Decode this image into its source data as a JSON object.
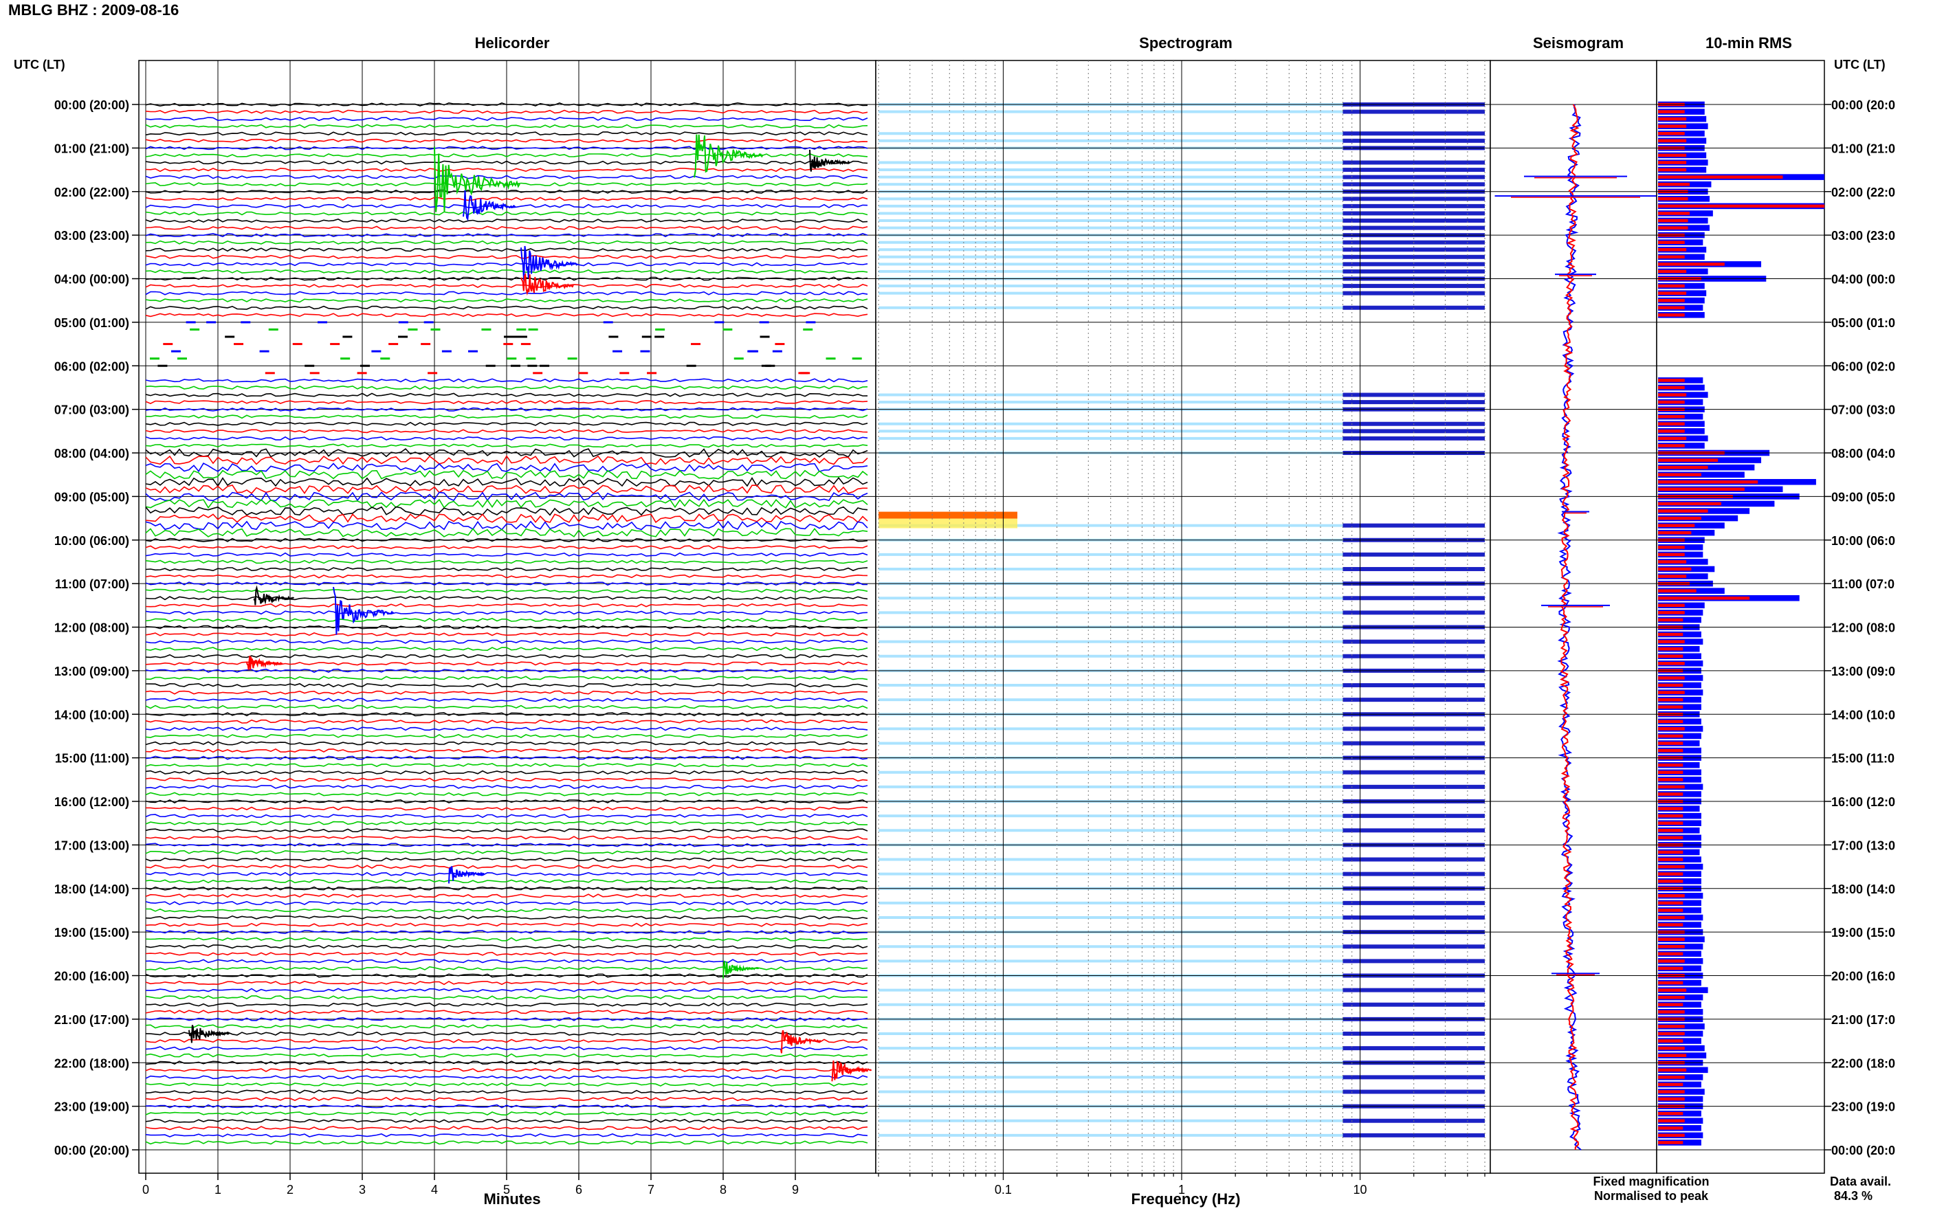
{
  "header": {
    "title": "MBLG BHZ : 2009-08-16"
  },
  "panels": {
    "helicorder": "Helicorder",
    "spectrogram": "Spectrogram",
    "seismogram": "Seismogram",
    "rms": "10-min RMS"
  },
  "axes": {
    "utc_lt_left": "UTC (LT)",
    "utc_lt_right": "UTC (LT)",
    "minutes_label": "Minutes",
    "frequency_label": "Frequency (Hz)"
  },
  "legend": {
    "fixed": "Fixed magnification",
    "normalised": "Normalised to peak",
    "fixed_color": "#0000ff",
    "normalised_color": "#ff0000"
  },
  "data_avail": {
    "label": "Data avail.",
    "value": "84.3 %"
  },
  "chart_data": {
    "type": "heatmap",
    "time_labels": [
      "00:00 (20:00)",
      "01:00 (21:00)",
      "02:00 (22:00)",
      "03:00 (23:00)",
      "04:00 (00:00)",
      "05:00 (01:00)",
      "06:00 (02:00)",
      "07:00 (03:00)",
      "08:00 (04:00)",
      "09:00 (05:00)",
      "10:00 (06:00)",
      "11:00 (07:00)",
      "12:00 (08:00)",
      "13:00 (09:00)",
      "14:00 (10:00)",
      "15:00 (11:00)",
      "16:00 (12:00)",
      "17:00 (13:00)",
      "18:00 (14:00)",
      "19:00 (15:00)",
      "20:00 (16:00)",
      "21:00 (17:00)",
      "22:00 (18:00)",
      "23:00 (19:00)",
      "00:00 (20:00)"
    ],
    "right_time_labels": [
      "00:00 (20:0",
      "01:00 (21:0",
      "02:00 (22:0",
      "03:00 (23:0",
      "04:00 (00:0",
      "05:00 (01:0",
      "06:00 (02:0",
      "07:00 (03:0",
      "08:00 (04:0",
      "09:00 (05:0",
      "10:00 (06:0",
      "11:00 (07:0",
      "12:00 (08:0",
      "13:00 (09:0",
      "14:00 (10:0",
      "15:00 (11:0",
      "16:00 (12:0",
      "17:00 (13:0",
      "18:00 (14:0",
      "19:00 (15:0",
      "20:00 (16:0",
      "21:00 (17:0",
      "22:00 (18:0",
      "23:00 (19:0",
      "00:00 (20:0"
    ],
    "minute_ticks": [
      "0",
      "1",
      "2",
      "3",
      "4",
      "5",
      "6",
      "7",
      "8",
      "9"
    ],
    "minutes_range": [
      0,
      10
    ],
    "frequency_ticks": [
      "0.1",
      "1",
      "10"
    ],
    "frequency_range_hz": [
      0.02,
      50
    ],
    "frequency_scale": "log",
    "trace_colors": [
      "#000000",
      "#ff0000",
      "#0000ff",
      "#00cc00"
    ],
    "events": [
      {
        "time": "01:10",
        "minute": 7.6,
        "amplitude": 1.0
      },
      {
        "time": "01:20",
        "minute": 9.2,
        "amplitude": 0.3
      },
      {
        "time": "01:50",
        "minute": 4.0,
        "amplitude": 1.4
      },
      {
        "time": "02:20",
        "minute": 4.4,
        "amplitude": 0.6
      },
      {
        "time": "03:40",
        "minute": 5.2,
        "amplitude": 0.7
      },
      {
        "time": "04:10",
        "minute": 5.2,
        "amplitude": 0.6
      },
      {
        "time": "11:20",
        "minute": 1.5,
        "amplitude": 0.3
      },
      {
        "time": "11:40",
        "minute": 2.6,
        "amplitude": 0.8
      },
      {
        "time": "12:50",
        "minute": 1.4,
        "amplitude": 0.2
      },
      {
        "time": "17:40",
        "minute": 4.2,
        "amplitude": 0.2
      },
      {
        "time": "19:50",
        "minute": 8.0,
        "amplitude": 0.2
      },
      {
        "time": "21:20",
        "minute": 0.6,
        "amplitude": 0.3
      },
      {
        "time": "21:30",
        "minute": 8.8,
        "amplitude": 0.3
      },
      {
        "time": "22:10",
        "minute": 9.5,
        "amplitude": 0.3
      }
    ],
    "rms_per_10min": {
      "unit": "relative",
      "fixed": [
        0.28,
        0.28,
        0.29,
        0.3,
        0.28,
        0.29,
        0.28,
        0.29,
        0.3,
        0.29,
        1.0,
        0.32,
        0.3,
        0.31,
        1.0,
        0.33,
        0.3,
        0.31,
        0.28,
        0.27,
        0.29,
        0.28,
        0.62,
        0.3,
        0.65,
        0.28,
        0.29,
        0.28,
        0.27,
        0.28,
        0.0,
        0.0,
        0.0,
        0.0,
        0.0,
        0.0,
        0.0,
        0.0,
        0.27,
        0.28,
        0.3,
        0.27,
        0.28,
        0.27,
        0.28,
        0.28,
        0.3,
        0.28,
        0.67,
        0.62,
        0.58,
        0.52,
        0.95,
        0.75,
        0.85,
        0.7,
        0.55,
        0.48,
        0.4,
        0.34,
        0.28,
        0.27,
        0.27,
        0.3,
        0.34,
        0.3,
        0.33,
        0.4,
        0.85,
        0.28,
        0.27,
        0.26,
        0.25,
        0.26,
        0.27,
        0.25,
        0.26,
        0.27,
        0.26,
        0.27,
        0.26,
        0.27,
        0.26,
        0.26,
        0.25,
        0.26,
        0.27,
        0.26,
        0.25,
        0.26,
        0.26,
        0.25,
        0.26,
        0.26,
        0.27,
        0.26,
        0.26,
        0.25,
        0.26,
        0.26,
        0.25,
        0.26,
        0.26,
        0.25,
        0.26,
        0.27,
        0.26,
        0.26,
        0.26,
        0.27,
        0.26,
        0.26,
        0.27,
        0.26,
        0.27,
        0.28,
        0.27,
        0.26,
        0.27,
        0.26,
        0.27,
        0.26,
        0.3,
        0.27,
        0.26,
        0.27,
        0.27,
        0.28,
        0.27,
        0.26,
        0.28,
        0.29,
        0.27,
        0.3,
        0.27,
        0.26,
        0.28,
        0.27,
        0.27,
        0.26,
        0.27,
        0.26,
        0.27,
        0.26
      ],
      "normalised": [
        0.16,
        0.16,
        0.17,
        0.17,
        0.16,
        0.17,
        0.16,
        0.17,
        0.17,
        0.17,
        0.75,
        0.19,
        0.18,
        0.18,
        1.0,
        0.19,
        0.18,
        0.18,
        0.16,
        0.16,
        0.17,
        0.16,
        0.4,
        0.17,
        0.26,
        0.16,
        0.17,
        0.16,
        0.16,
        0.16,
        0.0,
        0.0,
        0.0,
        0.0,
        0.0,
        0.0,
        0.0,
        0.0,
        0.16,
        0.16,
        0.17,
        0.16,
        0.16,
        0.16,
        0.16,
        0.16,
        0.17,
        0.16,
        0.4,
        0.36,
        0.3,
        0.26,
        0.6,
        0.52,
        0.45,
        0.38,
        0.3,
        0.26,
        0.22,
        0.2,
        0.16,
        0.16,
        0.16,
        0.17,
        0.2,
        0.17,
        0.19,
        0.23,
        0.55,
        0.16,
        0.16,
        0.15,
        0.15,
        0.15,
        0.16,
        0.15,
        0.15,
        0.16,
        0.15,
        0.16,
        0.15,
        0.16,
        0.15,
        0.15,
        0.15,
        0.15,
        0.16,
        0.15,
        0.15,
        0.15,
        0.15,
        0.15,
        0.15,
        0.15,
        0.16,
        0.15,
        0.15,
        0.15,
        0.15,
        0.15,
        0.15,
        0.15,
        0.15,
        0.15,
        0.15,
        0.16,
        0.15,
        0.15,
        0.15,
        0.16,
        0.15,
        0.15,
        0.16,
        0.15,
        0.16,
        0.16,
        0.16,
        0.15,
        0.16,
        0.15,
        0.16,
        0.15,
        0.17,
        0.16,
        0.15,
        0.16,
        0.16,
        0.16,
        0.16,
        0.15,
        0.16,
        0.17,
        0.16,
        0.17,
        0.16,
        0.15,
        0.16,
        0.16,
        0.16,
        0.15,
        0.16,
        0.15,
        0.16,
        0.15
      ]
    }
  }
}
